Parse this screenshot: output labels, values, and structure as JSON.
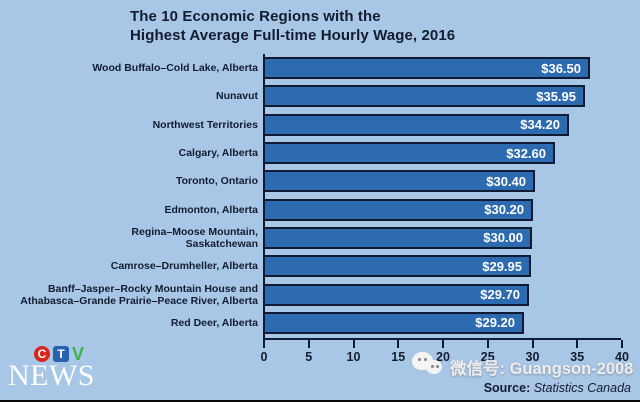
{
  "title": {
    "line1": "The 10 Economic Regions with the",
    "line2": "Highest Average Full-time Hourly Wage, 2016"
  },
  "chart_data": {
    "type": "bar",
    "orientation": "horizontal",
    "title": "The 10 Economic Regions with the Highest Average Full-time Hourly Wage, 2016",
    "categories": [
      "Wood Buffalo–Cold Lake, Alberta",
      "Nunavut",
      "Northwest Territories",
      "Calgary, Alberta",
      "Toronto, Ontario",
      "Edmonton, Alberta",
      "Regina–Moose Mountain,\nSaskatchewan",
      "Camrose–Drumheller, Alberta",
      "Banff–Jasper–Rocky Mountain House and\nAthabasca–Grande Prairie–Peace River, Alberta",
      "Red Deer, Alberta"
    ],
    "values": [
      36.5,
      35.95,
      34.2,
      32.6,
      30.4,
      30.2,
      30.0,
      29.95,
      29.7,
      29.2
    ],
    "value_labels": [
      "$36.50",
      "$35.95",
      "$34.20",
      "$32.60",
      "$30.40",
      "$30.20",
      "$30.00",
      "$29.95",
      "$29.70",
      "$29.20"
    ],
    "xlabel": "",
    "ylabel": "",
    "xlim": [
      0,
      40
    ],
    "x_ticks": [
      0,
      5,
      10,
      15,
      20,
      25,
      30,
      35,
      40
    ],
    "grid": false,
    "legend": false
  },
  "source": {
    "label": "Source:",
    "value": "Statistics Canada"
  },
  "branding": {
    "letter_c": "C",
    "letter_t": "T",
    "letter_v": "V",
    "news_text": "NEWS"
  },
  "watermark": {
    "text": "微信号: Guangson-2008",
    "icon": "wechat-icon"
  },
  "colors": {
    "background": "#a8c6e6",
    "bar_fill": "#2d6bb1",
    "bar_border": "#101a33",
    "text_dark": "#131c30",
    "value_text": "#ffffff",
    "ctv_red": "#d9261c",
    "ctv_blue": "#2a61ae",
    "ctv_green": "#3cb24a"
  }
}
